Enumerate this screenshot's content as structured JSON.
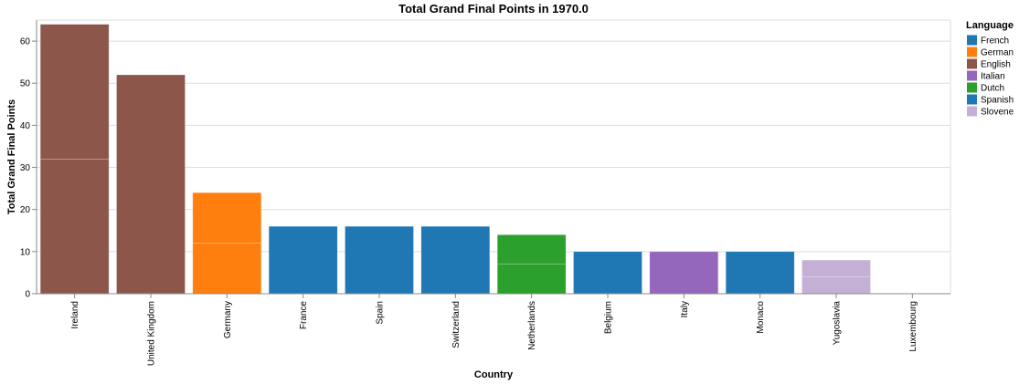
{
  "chart_data": {
    "type": "bar",
    "title": "Total Grand Final Points in 1970.0",
    "xlabel": "Country",
    "ylabel": "Total Grand Final Points",
    "ylim": [
      0,
      65
    ],
    "yticks": [
      0,
      10,
      20,
      30,
      40,
      50,
      60
    ],
    "grid": true,
    "categories": [
      "Ireland",
      "United Kingdom",
      "Germany",
      "France",
      "Spain",
      "Switzerland",
      "Netherlands",
      "Belgium",
      "Italy",
      "Monaco",
      "Yugoslavia",
      "Luxembourg"
    ],
    "values": [
      64,
      52,
      24,
      16,
      16,
      16,
      14,
      10,
      10,
      10,
      8,
      0
    ],
    "bar_segments": [
      [
        32,
        32
      ],
      [
        52
      ],
      [
        12,
        12
      ],
      [
        16
      ],
      [
        16
      ],
      [
        16
      ],
      [
        7,
        7
      ],
      [
        10
      ],
      [
        10
      ],
      [
        10
      ],
      [
        4,
        4
      ],
      [
        0
      ]
    ],
    "languages": [
      "English",
      "English",
      "German",
      "French",
      "Spanish",
      "French",
      "Dutch",
      "French",
      "Italian",
      "French",
      "Slovene",
      "French"
    ],
    "legend": {
      "title": "Language",
      "placement": "right",
      "entries": [
        {
          "label": "French",
          "color": "#1f77b4"
        },
        {
          "label": "German",
          "color": "#ff7f0e"
        },
        {
          "label": "English",
          "color": "#8c564b"
        },
        {
          "label": "Italian",
          "color": "#9467bd"
        },
        {
          "label": "Dutch",
          "color": "#2ca02c"
        },
        {
          "label": "Spanish",
          "color": "#1f77b4"
        },
        {
          "label": "Slovene",
          "color": "#c5b0d5"
        }
      ]
    }
  }
}
